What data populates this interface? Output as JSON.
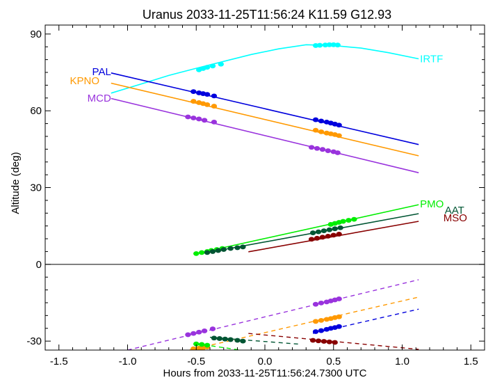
{
  "chart_data": {
    "type": "line",
    "title": "Uranus 2033-11-25T11:56:24  K11.59  G12.93",
    "xlabel": "Hours from 2033-11-25T11:56:24.7300 UTC",
    "ylabel": "Altitude (deg)",
    "xlim": [
      -1.6,
      1.6
    ],
    "ylim": [
      -33.5,
      93.5
    ],
    "x_ticks": [
      -1.5,
      -1.0,
      -0.5,
      0.0,
      0.5,
      1.0,
      1.5
    ],
    "x_tick_labels": [
      "-1.5",
      "-1.0",
      "-0.5",
      "0.0",
      "0.5",
      "1.0",
      "1.5"
    ],
    "y_ticks": [
      -30,
      0,
      30,
      60,
      90
    ],
    "y_tick_labels": [
      "-30",
      "0",
      "30",
      "60",
      "90"
    ],
    "zero_line": true,
    "grid": false,
    "series": [
      {
        "name": "IRTF",
        "color": "#00ffff",
        "line": {
          "x": [
            -1.12,
            -0.9,
            -0.7,
            -0.5,
            -0.3,
            -0.1,
            0.1,
            0.3,
            0.5,
            0.7,
            0.9,
            1.12
          ],
          "y": [
            66.9,
            70.5,
            73.8,
            76.6,
            79.3,
            82.0,
            84.2,
            85.8,
            85.5,
            84.5,
            82.7,
            80.3
          ]
        },
        "points": {
          "x": [
            -0.48,
            -0.45,
            -0.42,
            -0.38,
            -0.32,
            0.37,
            0.4,
            0.44,
            0.47,
            0.5,
            0.53
          ],
          "y": [
            76.0,
            76.5,
            77.0,
            77.5,
            78.2,
            85.5,
            85.6,
            85.7,
            85.8,
            85.8,
            85.7
          ]
        },
        "below_horizon": null
      },
      {
        "name": "PAL",
        "color": "#0000dd",
        "line": {
          "x": [
            -1.12,
            1.12
          ],
          "y": [
            74.8,
            46.8
          ]
        },
        "points": {
          "x": [
            -0.52,
            -0.48,
            -0.45,
            -0.42,
            -0.37,
            0.37,
            0.41,
            0.45,
            0.48,
            0.51,
            0.54
          ],
          "y": [
            67.5,
            67.0,
            66.7,
            66.4,
            65.8,
            56.5,
            56.0,
            55.6,
            55.2,
            54.8,
            54.4
          ]
        },
        "below_horizon": {
          "x": [
            0.35,
            1.12
          ],
          "y": [
            -27.0,
            -17.5
          ],
          "points_x": [
            0.37,
            0.41,
            0.45,
            0.48,
            0.51,
            0.54
          ],
          "points_y": [
            -26.3,
            -25.9,
            -25.4,
            -25.0,
            -24.7,
            -24.3
          ]
        }
      },
      {
        "name": "KPNO",
        "color": "#ff9900",
        "line": {
          "x": [
            -1.12,
            1.12
          ],
          "y": [
            70.8,
            42.4
          ]
        },
        "points": {
          "x": [
            -0.52,
            -0.48,
            -0.45,
            -0.42,
            -0.37,
            0.37,
            0.41,
            0.45,
            0.48,
            0.51,
            0.54
          ],
          "y": [
            63.7,
            63.2,
            62.8,
            62.4,
            61.8,
            52.4,
            51.8,
            51.3,
            51.0,
            50.7,
            50.3
          ]
        },
        "below_horizon": {
          "x": [
            -0.55,
            1.12
          ],
          "y": [
            -33.5,
            -12.8
          ],
          "points_x": [
            -0.52,
            -0.48,
            -0.45,
            -0.42,
            0.37,
            0.41,
            0.45,
            0.48,
            0.51,
            0.54
          ],
          "points_y": [
            -33.0,
            -32.8,
            -32.6,
            -32.3,
            -22.3,
            -21.9,
            -21.5,
            -21.2,
            -20.8,
            -20.5
          ]
        }
      },
      {
        "name": "MCD",
        "color": "#9933dd",
        "line": {
          "x": [
            -1.12,
            1.12
          ],
          "y": [
            64.8,
            35.8
          ]
        },
        "points": {
          "x": [
            -0.56,
            -0.52,
            -0.48,
            -0.44,
            -0.37,
            0.34,
            0.38,
            0.42,
            0.46,
            0.5,
            0.53
          ],
          "y": [
            57.6,
            57.2,
            56.8,
            56.3,
            55.6,
            45.7,
            45.3,
            44.9,
            44.4,
            44.0,
            43.6
          ]
        },
        "below_horizon": {
          "x": [
            -1.0,
            1.12
          ],
          "y": [
            -33.5,
            -6.0
          ],
          "points_x": [
            -0.56,
            -0.52,
            -0.48,
            -0.44,
            -0.38,
            0.37,
            0.41,
            0.45,
            0.48,
            0.51,
            0.54
          ],
          "points_y": [
            -27.5,
            -27.0,
            -26.5,
            -26.0,
            -25.2,
            -15.6,
            -15.1,
            -14.7,
            -14.3,
            -13.9,
            -13.5
          ]
        }
      },
      {
        "name": "PMO",
        "color": "#00ee00",
        "line": {
          "x": [
            -0.5,
            1.12
          ],
          "y": [
            4.2,
            23.3
          ]
        },
        "points": {
          "x": [
            -0.5,
            -0.46,
            -0.42,
            -0.39,
            -0.35,
            -0.31,
            0.48,
            0.51,
            0.54,
            0.57,
            0.61,
            0.65
          ],
          "y": [
            4.2,
            4.6,
            5.0,
            5.4,
            5.8,
            6.2,
            15.6,
            16.0,
            16.4,
            16.8,
            17.2,
            17.6
          ]
        },
        "below_horizon": {
          "x": [
            -0.5,
            0.4
          ],
          "y": [
            -31.0,
            -38.0
          ],
          "points_x": [
            -0.5,
            -0.46,
            -0.42
          ],
          "points_y": [
            -31.1,
            -31.3,
            -31.6
          ]
        }
      },
      {
        "name": "AAT",
        "color": "#005533",
        "line": {
          "x": [
            -0.42,
            1.12
          ],
          "y": [
            4.6,
            19.8
          ]
        },
        "points": {
          "x": [
            -0.42,
            -0.38,
            -0.34,
            -0.3,
            -0.25,
            -0.2,
            -0.16,
            0.35,
            0.39,
            0.43,
            0.47,
            0.51,
            0.55
          ],
          "y": [
            4.6,
            5.0,
            5.4,
            5.8,
            6.2,
            6.5,
            6.8,
            12.3,
            12.7,
            13.1,
            13.5,
            13.9,
            14.3
          ]
        },
        "below_horizon": {
          "x": [
            -0.4,
            0.25
          ],
          "y": [
            -28.5,
            -31.2
          ],
          "points_x": [
            -0.37,
            -0.33,
            -0.29,
            -0.25,
            -0.2,
            -0.16
          ],
          "points_y": [
            -28.8,
            -29.0,
            -29.2,
            -29.4,
            -29.7,
            -30.0
          ]
        }
      },
      {
        "name": "MSO",
        "color": "#880000",
        "line": {
          "x": [
            -0.12,
            1.12
          ],
          "y": [
            4.9,
            16.8
          ]
        },
        "points": {
          "x": [
            0.34,
            0.38,
            0.42,
            0.46,
            0.5,
            0.54
          ],
          "y": [
            9.8,
            10.2,
            10.6,
            11.0,
            11.4,
            11.8
          ]
        },
        "below_horizon": {
          "x": [
            -0.12,
            1.12
          ],
          "y": [
            -27.0,
            -33.2
          ],
          "points_x": [
            0.35,
            0.39,
            0.43,
            0.47,
            0.51
          ],
          "points_y": [
            -29.7,
            -29.9,
            -30.1,
            -30.3,
            -30.5
          ]
        }
      }
    ],
    "site_labels": [
      {
        "name": "IRTF",
        "x": 1.13,
        "y": 80.3,
        "anchor": "start"
      },
      {
        "name": "PAL",
        "x": -1.12,
        "y": 75.3,
        "anchor": "end"
      },
      {
        "name": "KPNO",
        "x": -1.42,
        "y": 71.7,
        "anchor": "start"
      },
      {
        "name": "MCD",
        "x": -1.12,
        "y": 65.0,
        "anchor": "end"
      },
      {
        "name": "PMO",
        "x": 1.13,
        "y": 23.6,
        "anchor": "start"
      },
      {
        "name": "AAT",
        "x": 1.31,
        "y": 21.1,
        "anchor": "start"
      },
      {
        "name": "MSO",
        "x": 1.3,
        "y": 18.2,
        "anchor": "start"
      }
    ]
  }
}
